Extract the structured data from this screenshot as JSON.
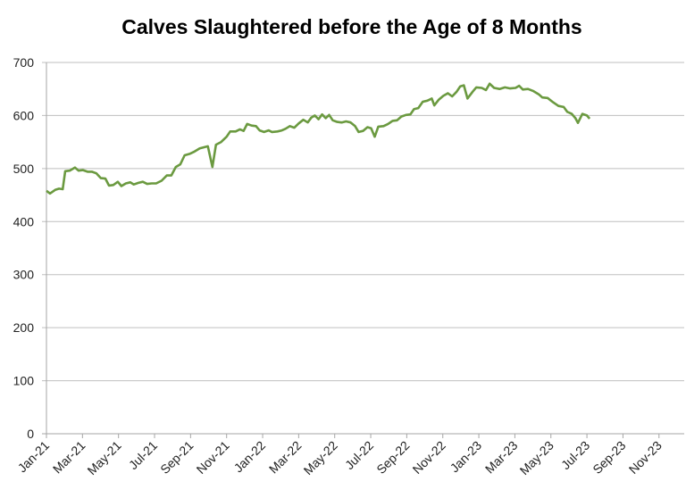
{
  "chart_data": {
    "type": "line",
    "title": "Calves Slaughtered before the Age of 8 Months",
    "xlabel": "",
    "ylabel": "",
    "ylim": [
      0,
      700
    ],
    "yticks": [
      "0",
      "100",
      "200",
      "300",
      "400",
      "500",
      "600",
      "700"
    ],
    "x_unit": "months since Jan-21",
    "xlim": [
      0,
      35.4
    ],
    "xticks": [
      "Jan-21",
      "Mar-21",
      "May-21",
      "Jul-21",
      "Sep-21",
      "Nov-21",
      "Jan-22",
      "Mar-22",
      "May-22",
      "Jul-22",
      "Sep-22",
      "Nov-22",
      "Jan-23",
      "Mar-23",
      "May-23",
      "Jul-23",
      "Sep-23",
      "Nov-23"
    ],
    "grid": true,
    "legend": "none",
    "series": [
      {
        "name": "Calves slaughtered",
        "color": "#6b9a40",
        "points": [
          [
            0,
            458
          ],
          [
            0.2,
            453
          ],
          [
            0.5,
            460
          ],
          [
            0.7,
            462
          ],
          [
            0.9,
            461
          ],
          [
            1.04,
            495
          ],
          [
            1.29,
            496
          ],
          [
            1.58,
            502
          ],
          [
            1.78,
            496
          ],
          [
            2.03,
            497
          ],
          [
            2.28,
            494
          ],
          [
            2.52,
            494
          ],
          [
            2.77,
            491
          ],
          [
            3.02,
            482
          ],
          [
            3.27,
            481
          ],
          [
            3.47,
            468
          ],
          [
            3.71,
            469
          ],
          [
            3.96,
            475
          ],
          [
            4.16,
            467
          ],
          [
            4.41,
            472
          ],
          [
            4.65,
            474
          ],
          [
            4.85,
            470
          ],
          [
            5.1,
            473
          ],
          [
            5.35,
            475
          ],
          [
            5.59,
            471
          ],
          [
            5.84,
            472
          ],
          [
            6.09,
            472
          ],
          [
            6.39,
            477
          ],
          [
            6.68,
            487
          ],
          [
            6.93,
            487
          ],
          [
            7.18,
            503
          ],
          [
            7.43,
            508
          ],
          [
            7.67,
            525
          ],
          [
            7.97,
            528
          ],
          [
            8.22,
            532
          ],
          [
            8.51,
            538
          ],
          [
            8.96,
            542
          ],
          [
            9.21,
            503
          ],
          [
            9.41,
            545
          ],
          [
            9.7,
            550
          ],
          [
            10.0,
            560
          ],
          [
            10.2,
            570
          ],
          [
            10.5,
            570
          ],
          [
            10.74,
            574
          ],
          [
            10.94,
            571
          ],
          [
            11.14,
            584
          ],
          [
            11.39,
            581
          ],
          [
            11.63,
            580
          ],
          [
            11.83,
            572
          ],
          [
            12.08,
            569
          ],
          [
            12.33,
            572
          ],
          [
            12.52,
            569
          ],
          [
            12.82,
            570
          ],
          [
            13.07,
            572
          ],
          [
            13.27,
            575
          ],
          [
            13.51,
            580
          ],
          [
            13.76,
            577
          ],
          [
            14.0,
            585
          ],
          [
            14.26,
            592
          ],
          [
            14.5,
            587
          ],
          [
            14.7,
            596
          ],
          [
            14.9,
            600
          ],
          [
            15.1,
            593
          ],
          [
            15.3,
            602
          ],
          [
            15.5,
            595
          ],
          [
            15.69,
            601
          ],
          [
            15.89,
            591
          ],
          [
            16.14,
            588
          ],
          [
            16.39,
            587
          ],
          [
            16.63,
            589
          ],
          [
            16.88,
            587
          ],
          [
            17.13,
            580
          ],
          [
            17.33,
            569
          ],
          [
            17.57,
            571
          ],
          [
            17.82,
            578
          ],
          [
            18.02,
            576
          ],
          [
            18.22,
            560
          ],
          [
            18.42,
            579
          ],
          [
            18.71,
            580
          ],
          [
            18.96,
            584
          ],
          [
            19.21,
            590
          ],
          [
            19.46,
            591
          ],
          [
            19.7,
            598
          ],
          [
            19.95,
            601
          ],
          [
            20.2,
            602
          ],
          [
            20.4,
            612
          ],
          [
            20.64,
            614
          ],
          [
            20.89,
            626
          ],
          [
            21.14,
            628
          ],
          [
            21.39,
            632
          ],
          [
            21.53,
            619
          ],
          [
            21.78,
            630
          ],
          [
            22.03,
            637
          ],
          [
            22.28,
            642
          ],
          [
            22.52,
            636
          ],
          [
            22.77,
            645
          ],
          [
            22.97,
            655
          ],
          [
            23.17,
            657
          ],
          [
            23.37,
            632
          ],
          [
            23.66,
            645
          ],
          [
            23.86,
            653
          ],
          [
            24.16,
            652
          ],
          [
            24.4,
            648
          ],
          [
            24.6,
            660
          ],
          [
            24.85,
            652
          ],
          [
            25.15,
            650
          ],
          [
            25.45,
            653
          ],
          [
            25.74,
            651
          ],
          [
            26.04,
            652
          ],
          [
            26.24,
            656
          ],
          [
            26.44,
            649
          ],
          [
            26.73,
            650
          ],
          [
            27.03,
            646
          ],
          [
            27.33,
            640
          ],
          [
            27.52,
            634
          ],
          [
            27.82,
            633
          ],
          [
            28.12,
            625
          ],
          [
            28.42,
            618
          ],
          [
            28.71,
            616
          ],
          [
            28.91,
            607
          ],
          [
            29.16,
            603
          ],
          [
            29.36,
            595
          ],
          [
            29.5,
            586
          ],
          [
            29.75,
            603
          ],
          [
            30.0,
            600
          ],
          [
            30.15,
            594
          ]
        ]
      }
    ]
  }
}
